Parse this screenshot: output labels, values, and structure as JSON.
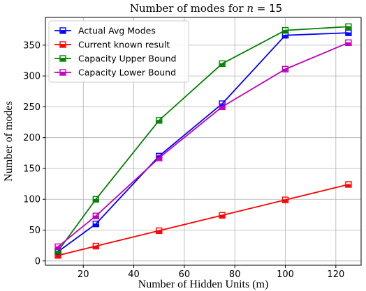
{
  "chart_data": {
    "type": "line",
    "title_prefix": "Number of modes for ",
    "title_var": "n",
    "title_eq": " = ",
    "title_num": "15",
    "xlabel": "Number of Hidden Units (m)",
    "ylabel": "Number of modes",
    "xlim": [
      5,
      130
    ],
    "ylim": [
      -7,
      395
    ],
    "xticks": [
      20,
      40,
      60,
      80,
      100,
      120
    ],
    "yticks": [
      0,
      50,
      100,
      150,
      200,
      250,
      300,
      350
    ],
    "grid": true,
    "legend_position": "top-left",
    "x": [
      10,
      25,
      50,
      75,
      100,
      125
    ],
    "series": [
      {
        "name": "Actual Avg Modes",
        "color": "#0000ff",
        "values": [
          15,
          60,
          170,
          255,
          366,
          370
        ]
      },
      {
        "name": "Current known result",
        "color": "#ff0000",
        "values": [
          9,
          24,
          49,
          74,
          99,
          124
        ]
      },
      {
        "name": "Capacity Upper Bound",
        "color": "#008000",
        "values": [
          16,
          100,
          228,
          320,
          374,
          380
        ]
      },
      {
        "name": "Capacity Lower Bound",
        "color": "#bf00bf",
        "values": [
          23,
          73,
          167,
          250,
          311,
          354
        ]
      }
    ]
  }
}
